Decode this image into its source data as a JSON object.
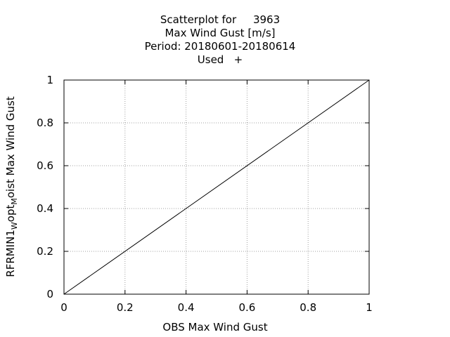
{
  "chart_data": {
    "type": "scatter",
    "title_lines": [
      "Scatterplot for     3963",
      "Max Wind Gust [m/s]",
      "Period: 20180601-20180614",
      "Used   +"
    ],
    "xlabel": "OBS Max Wind Gust",
    "ylabel": {
      "parts": [
        {
          "text": "RFRMIN1",
          "sub": false
        },
        {
          "text": "W",
          "sub": true
        },
        {
          "text": "opt",
          "sub": false
        },
        {
          "text": "M",
          "sub": true
        },
        {
          "text": "oist Max Wind Gust",
          "sub": false
        }
      ]
    },
    "xlim": [
      0,
      1
    ],
    "ylim": [
      0,
      1
    ],
    "xticks": [
      0,
      0.2,
      0.4,
      0.6,
      0.8,
      1
    ],
    "yticks": [
      0,
      0.2,
      0.4,
      0.6,
      0.8,
      1
    ],
    "xtick_labels": [
      "0",
      "0.2",
      "0.4",
      "0.6",
      "0.8",
      "1"
    ],
    "ytick_labels": [
      "0",
      "0.2",
      "0.4",
      "0.6",
      "0.8",
      "1"
    ],
    "grid": true,
    "series": [],
    "reference_line": {
      "x": [
        0,
        1
      ],
      "y": [
        0,
        1
      ]
    }
  }
}
